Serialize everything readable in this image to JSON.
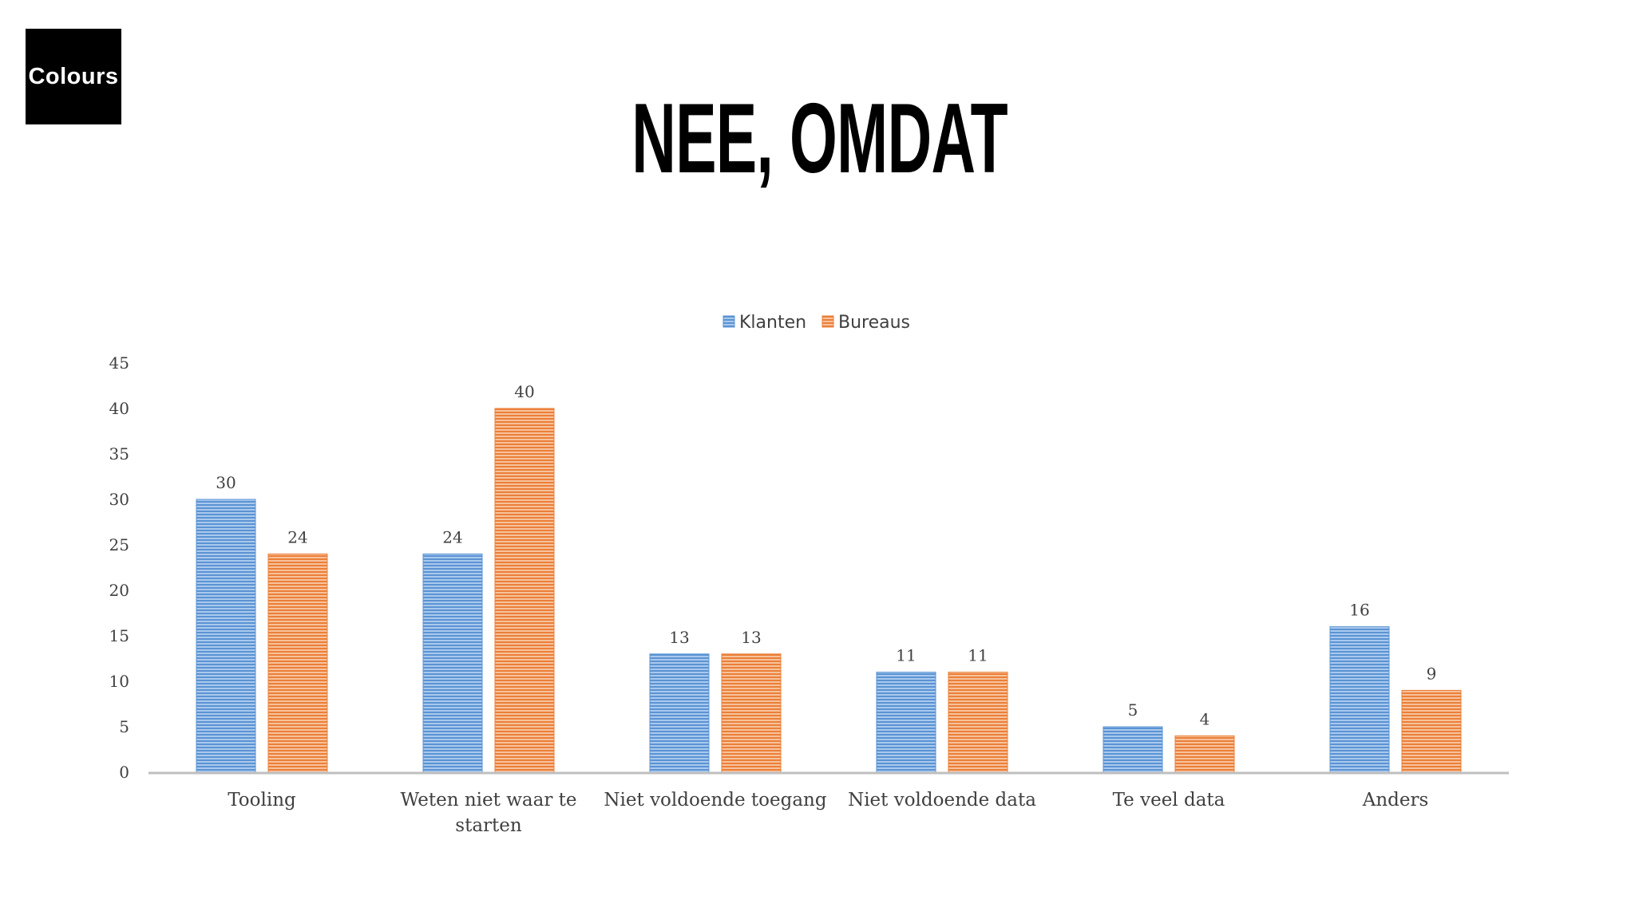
{
  "logo": {
    "text": "Colours"
  },
  "page": {
    "title": "NEE, OMDAT"
  },
  "chart_data": {
    "type": "bar",
    "title": "NEE, OMDAT",
    "categories": [
      [
        "Tooling"
      ],
      [
        "Weten niet waar te",
        "starten"
      ],
      [
        "Niet voldoende toegang"
      ],
      [
        "Niet voldoende data"
      ],
      [
        "Te veel data"
      ],
      [
        "Anders"
      ]
    ],
    "series": [
      {
        "name": "Klanten",
        "values": [
          30,
          24,
          13,
          11,
          5,
          16
        ],
        "color": "#6A9FD8"
      },
      {
        "name": "Bureaus",
        "values": [
          24,
          40,
          13,
          11,
          4,
          9
        ],
        "color": "#EE8E4D"
      }
    ],
    "yticks": [
      0,
      5,
      10,
      15,
      20,
      25,
      30,
      35,
      40,
      45
    ],
    "ylim": [
      0,
      45
    ],
    "legend": "top-center",
    "grid": false,
    "data_labels": true,
    "bar_pattern": "horizontal-stripes"
  }
}
